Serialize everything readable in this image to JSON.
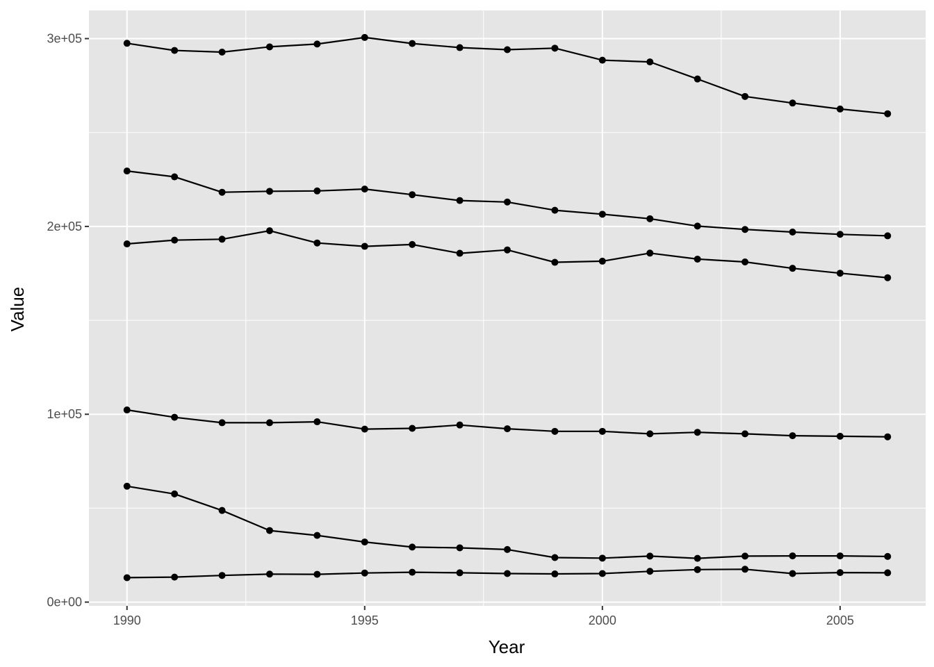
{
  "chart_data": {
    "type": "line",
    "title": "",
    "xlabel": "Year",
    "ylabel": "Value",
    "xlim": [
      1989.2,
      2006.8
    ],
    "ylim": [
      -2000,
      315000
    ],
    "x_ticks": [
      1990,
      1995,
      2000,
      2005
    ],
    "x_tick_labels": [
      "1990",
      "1995",
      "2000",
      "2005"
    ],
    "x_minor_ticks": [
      1992.5,
      1997.5,
      2002.5
    ],
    "y_ticks": [
      0,
      100000,
      200000,
      300000
    ],
    "y_tick_labels": [
      "0e+00",
      "1e+05",
      "2e+05",
      "3e+05"
    ],
    "y_minor_ticks": [
      50000,
      150000,
      250000
    ],
    "grid": true,
    "legend": "none",
    "colors": {
      "panel_background": "#e5e5e5",
      "grid": "#ffffff",
      "line": "#000000",
      "point": "#000000",
      "tick_text": "#4d4d4d",
      "axis_tick": "#333333"
    },
    "x": [
      1990,
      1991,
      1992,
      1993,
      1994,
      1995,
      1996,
      1997,
      1998,
      1999,
      2000,
      2001,
      2002,
      2003,
      2004,
      2005,
      2006
    ],
    "series": [
      {
        "values": [
          297500,
          293700,
          292800,
          295600,
          297100,
          300600,
          297400,
          295200,
          294100,
          294900,
          288500,
          287600,
          278500,
          269200,
          265700,
          262500,
          260000
        ]
      },
      {
        "values": [
          229500,
          226400,
          218200,
          218700,
          218900,
          219900,
          216900,
          213800,
          213000,
          208600,
          206500,
          204100,
          200200,
          198400,
          197000,
          195800,
          195000
        ]
      },
      {
        "values": [
          190700,
          192700,
          193200,
          197700,
          191200,
          189400,
          190400,
          185700,
          187500,
          180900,
          181500,
          185800,
          182600,
          181100,
          177700,
          175100,
          172700
        ]
      },
      {
        "values": [
          102300,
          98400,
          95500,
          95500,
          96000,
          92100,
          92500,
          94300,
          92300,
          90900,
          90900,
          89600,
          90400,
          89600,
          88600,
          88300,
          88000
        ]
      },
      {
        "values": [
          61700,
          57600,
          48800,
          38100,
          35500,
          32000,
          29300,
          28900,
          28000,
          23700,
          23400,
          24500,
          23300,
          24500,
          24600,
          24600,
          24300
        ]
      },
      {
        "values": [
          13000,
          13300,
          14200,
          14900,
          14800,
          15500,
          15900,
          15600,
          15200,
          15000,
          15200,
          16400,
          17300,
          17500,
          15200,
          15700,
          15600
        ]
      }
    ]
  }
}
